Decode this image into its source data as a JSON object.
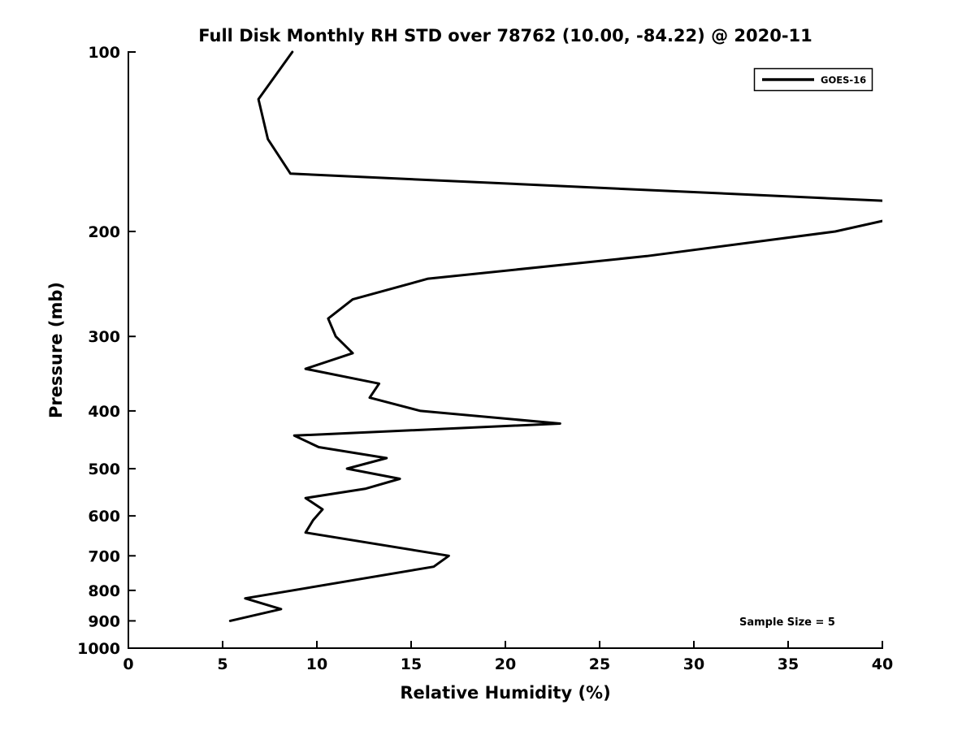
{
  "figure": {
    "title": "Full Disk Monthly RH STD over 78762 (10.00, -84.22) @ 2020-11"
  },
  "chart_data": {
    "type": "line",
    "title": "Full Disk Monthly RH STD over 78762 (10.00, -84.22) @ 2020-11",
    "xlabel": "Relative Humidity (%)",
    "ylabel": "Pressure (mb)",
    "xlim": [
      0,
      40
    ],
    "ylim": [
      100,
      1000
    ],
    "yscale": "log",
    "y_axis_inverted": true,
    "grid": false,
    "background_color": "#ffffff",
    "axis_color": "#000000",
    "xticks": [
      0,
      5,
      10,
      15,
      20,
      25,
      30,
      35,
      40
    ],
    "yticks": [
      100,
      200,
      300,
      400,
      500,
      600,
      700,
      800,
      900,
      1000
    ],
    "legend": {
      "position": "upper right",
      "entries": [
        {
          "label": "GOES-16",
          "color": "#000000",
          "line_width": 3
        }
      ]
    },
    "annotation": {
      "text": "Sample Size = 5",
      "position": "lower right"
    },
    "series": [
      {
        "name": "GOES-16",
        "color": "#000000",
        "line_width": 3,
        "x_rh_std_percent": [
          8.7,
          6.9,
          7.4,
          8.6,
          44.0,
          37.5,
          27.5,
          15.9,
          11.9,
          10.6,
          11.0,
          11.9,
          9.4,
          13.3,
          12.8,
          15.5,
          22.9,
          8.8,
          10.1,
          13.7,
          11.6,
          14.4,
          12.6,
          9.4,
          10.3,
          9.8,
          9.4,
          17.0,
          16.2,
          6.2,
          8.1,
          5.4
        ],
        "y_pressure_mb": [
          100,
          120,
          140,
          160,
          180,
          200,
          220,
          240,
          260,
          280,
          300,
          320,
          340,
          360,
          380,
          400,
          420,
          440,
          460,
          480,
          500,
          520,
          540,
          560,
          585,
          610,
          640,
          700,
          730,
          825,
          860,
          900
        ]
      }
    ]
  }
}
